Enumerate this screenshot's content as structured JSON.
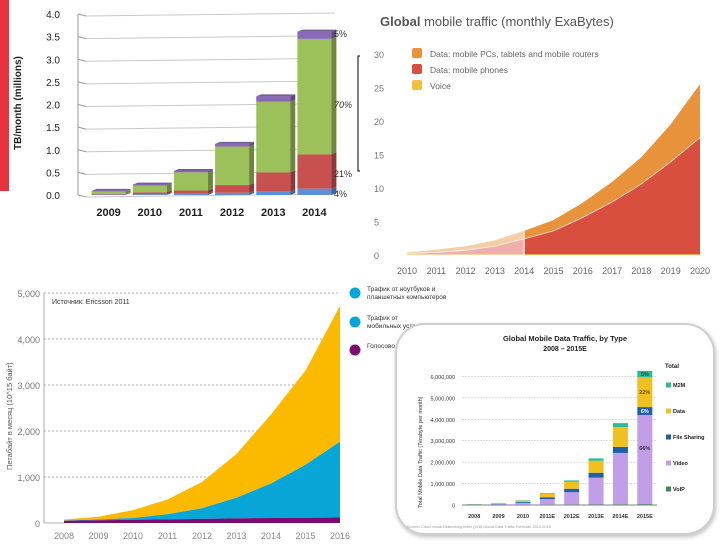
{
  "chart_data": [
    {
      "id": "tb-month",
      "type": "bar",
      "stacked": true,
      "title": "",
      "xlabel": "",
      "ylabel": "TB/month (millions)",
      "ylim": [
        0,
        4.0
      ],
      "yticks": [
        "0.0",
        "0.5",
        "1.0",
        "1.5",
        "2.0",
        "2.5",
        "3.0",
        "3.5",
        "4.0"
      ],
      "categories": [
        "2009",
        "2010",
        "2011",
        "2012",
        "2013",
        "2014"
      ],
      "series": [
        {
          "name": "Blue segment",
          "color": "#5b8fd6",
          "values": [
            0.01,
            0.02,
            0.03,
            0.05,
            0.08,
            0.14
          ]
        },
        {
          "name": "Red segment",
          "color": "#c8504e",
          "values": [
            0.01,
            0.04,
            0.07,
            0.17,
            0.42,
            0.76
          ]
        },
        {
          "name": "Green segment",
          "color": "#9cc05a",
          "values": [
            0.06,
            0.15,
            0.4,
            0.85,
            1.56,
            2.55
          ]
        },
        {
          "name": "Purple segment",
          "color": "#8a6ab8",
          "values": [
            0.01,
            0.02,
            0.03,
            0.06,
            0.12,
            0.16
          ]
        }
      ],
      "annotations": [
        "5%",
        "70%",
        "21%",
        "4%"
      ],
      "grid": true
    },
    {
      "id": "global-mobile-traffic",
      "type": "area",
      "stacked": true,
      "title_bold": "Global",
      "title_rest": " mobile traffic (monthly ExaBytes)",
      "xlabel": "",
      "ylabel": "",
      "ylim": [
        0,
        30
      ],
      "yticks": [
        "0",
        "5",
        "10",
        "15",
        "20",
        "25",
        "30"
      ],
      "x": [
        "2010",
        "2011",
        "2012",
        "2013",
        "2014",
        "2015",
        "2016",
        "2017",
        "2018",
        "2019",
        "2020"
      ],
      "series": [
        {
          "name": "Voice",
          "color": "#f0c040",
          "values": [
            0.1,
            0.1,
            0.1,
            0.1,
            0.1,
            0.1,
            0.1,
            0.1,
            0.1,
            0.1,
            0.1
          ]
        },
        {
          "name": "Data: mobile phones",
          "color": "#d94f3f",
          "values": [
            0.1,
            0.3,
            0.6,
            1.2,
            2.3,
            3.5,
            5.5,
            7.8,
            10.5,
            13.8,
            17.4
          ]
        },
        {
          "name": "Data: mobile PCs, tablets and mobile routers",
          "color": "#e8923c",
          "values": [
            0.2,
            0.4,
            0.6,
            0.9,
            1.2,
            1.6,
            2.2,
            3.0,
            4.0,
            5.6,
            8.0
          ]
        }
      ],
      "legend_order": [
        "Data: mobile PCs, tablets and mobile routers",
        "Data: mobile phones",
        "Voice"
      ],
      "legend_position": "top-left",
      "historical_until": "2014",
      "grid": false
    },
    {
      "id": "ericsson-traffic",
      "type": "area",
      "stacked": true,
      "title": "",
      "source": "Источник: Ericsson 2011",
      "xlabel": "",
      "ylabel": "Петабайт в месяц (10^15 байт)",
      "ylim": [
        0,
        5000
      ],
      "yticks": [
        "0",
        "1,000",
        "2,000",
        "3,000",
        "4,000",
        "5,000"
      ],
      "x": [
        "2008",
        "2009",
        "2010",
        "2011",
        "2012",
        "2013",
        "2014",
        "2015",
        "2016"
      ],
      "series": [
        {
          "name": "Голосовой",
          "color": "#7a0e6e",
          "values": [
            50,
            60,
            70,
            80,
            90,
            100,
            110,
            115,
            120
          ]
        },
        {
          "name": "Трафик от мобильных устройств",
          "color": "#08a6d6",
          "values": [
            5,
            15,
            40,
            110,
            230,
            450,
            750,
            1150,
            1650
          ]
        },
        {
          "name": "Трафик от ноутбуков и планшетных компьютеров",
          "color": "#fbb900",
          "values": [
            20,
            60,
            170,
            320,
            570,
            950,
            1500,
            2050,
            2950
          ]
        }
      ],
      "legend_order": [
        "Трафик от ноутбуков и планшетных компьютеров",
        "Трафик от мобильных устройств",
        "Голосово..."
      ],
      "legend_position": "right",
      "grid": true
    },
    {
      "id": "cisco-vni",
      "type": "bar",
      "stacked": true,
      "title": "Global Mobile Data Traffic, by Type",
      "subtitle": "2008 – 2015E",
      "xlabel": "",
      "ylabel": "Total Mobile Data Traffic (Terabyte per month)",
      "ylim": [
        0,
        7000000
      ],
      "yticks": [
        "0",
        "1,000,000",
        "2,000,000",
        "3,000,000",
        "4,000,000",
        "5,000,000",
        "6,000,000"
      ],
      "categories": [
        "2008",
        "2009",
        "2010",
        "2011E",
        "2012E",
        "2013E",
        "2014E",
        "2015E"
      ],
      "series": [
        {
          "name": "VoIP",
          "color": "#3a8a5a",
          "values": [
            3000,
            5000,
            8000,
            12000,
            18000,
            25000,
            30000,
            40000
          ]
        },
        {
          "name": "Video",
          "color": "#c39ee8",
          "values": [
            10000,
            30000,
            90000,
            260000,
            580000,
            1250000,
            2400000,
            4160000
          ]
        },
        {
          "name": "File Sharing",
          "color": "#1f5fa8",
          "values": [
            8000,
            15000,
            40000,
            90000,
            160000,
            230000,
            280000,
            370000
          ]
        },
        {
          "name": "Data",
          "color": "#f0c020",
          "values": [
            12000,
            25000,
            70000,
            170000,
            330000,
            560000,
            930000,
            1390000
          ]
        },
        {
          "name": "M2M",
          "color": "#2fb894",
          "values": [
            1000,
            3000,
            8000,
            25000,
            60000,
            110000,
            180000,
            300000
          ]
        }
      ],
      "bar_labels_2015E": {
        "M2M": "5%",
        "Data": "22%",
        "File Sharing": "6%",
        "Video": "66%"
      },
      "legend_title": "Total",
      "legend_order": [
        "M2M",
        "Data",
        "File Sharing",
        "Video",
        "VoIP"
      ],
      "legend_position": "right",
      "source": "Source: Cisco Visual Networking Index (VNI) Global Data Traffic Forecast, 2010-2015",
      "grid": true
    }
  ]
}
